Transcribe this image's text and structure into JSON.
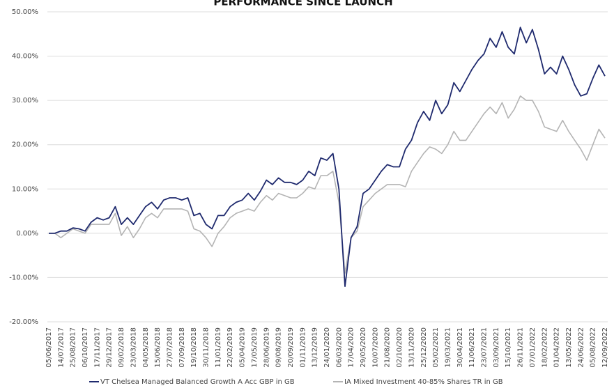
{
  "chart_data": {
    "type": "line",
    "title": "PERFORMANCE SINCE LAUNCH",
    "categories": [
      "05/06/2017",
      null,
      "14/07/2017",
      null,
      "25/08/2017",
      null,
      "06/10/2017",
      null,
      "17/11/2017",
      null,
      "29/12/2017",
      null,
      "09/02/2018",
      null,
      "23/03/2018",
      null,
      "04/05/2018",
      null,
      "15/06/2018",
      null,
      "27/07/2018",
      null,
      "07/09/2018",
      null,
      "19/10/2018",
      null,
      "30/11/2018",
      null,
      "11/01/2019",
      null,
      "22/02/2019",
      null,
      "05/04/2019",
      null,
      "17/05/2019",
      null,
      "28/06/2019",
      null,
      "09/08/2019",
      null,
      "20/09/2019",
      null,
      "01/11/2019",
      null,
      "13/12/2019",
      null,
      "24/01/2020",
      null,
      "06/03/2020",
      null,
      "17/04/2020",
      null,
      "29/05/2020",
      null,
      "10/07/2020",
      null,
      "21/08/2020",
      null,
      "02/10/2020",
      null,
      "13/11/2020",
      null,
      "25/12/2020",
      null,
      "05/02/2021",
      null,
      "19/03/2021",
      null,
      "30/04/2021",
      null,
      "11/06/2021",
      null,
      "23/07/2021",
      null,
      "03/09/2021",
      null,
      "15/10/2021",
      null,
      "26/11/2021",
      null,
      "07/01/2022",
      null,
      "18/02/2022",
      null,
      "01/04/2022",
      null,
      "13/05/2022",
      null,
      "24/06/2022",
      null,
      "05/08/2022",
      null,
      "12/09/2022"
    ],
    "series": [
      {
        "name": "VT Chelsea Managed Balanced Growth A Acc GBP in GB",
        "color": "#1f2a6e",
        "values": [
          0,
          0,
          0.5,
          0.5,
          1.2,
          1,
          0.5,
          2.5,
          3.5,
          3,
          3.5,
          6,
          2,
          3.5,
          2,
          4,
          6,
          7,
          5.5,
          7.5,
          8,
          8,
          7.5,
          8,
          4,
          4.5,
          2,
          1,
          4,
          4,
          6,
          7,
          7.5,
          9,
          7.5,
          9.5,
          12,
          11,
          12.5,
          11.5,
          11.5,
          11,
          12,
          14,
          13,
          17,
          16.5,
          18,
          10,
          -12,
          -1,
          1.5,
          9,
          10,
          12,
          14,
          15.5,
          15,
          15,
          19,
          21,
          25,
          27.5,
          25.5,
          30,
          27,
          29,
          34,
          32,
          34.5,
          37,
          39,
          40.5,
          44,
          42,
          45.5,
          42,
          40.5,
          46.5,
          43,
          46,
          41.5,
          36,
          37.5,
          36,
          40,
          37,
          33.5,
          31,
          31.5,
          35,
          38,
          35.5
        ]
      },
      {
        "name": "IA Mixed Investment 40-85% Shares TR in GB",
        "color": "#b4b4b4",
        "values": [
          0,
          0,
          -1,
          0,
          1,
          0.5,
          0,
          2,
          2,
          2,
          2,
          4.5,
          -0.5,
          1.5,
          -1,
          1,
          3.5,
          4.5,
          3.5,
          5.5,
          5.5,
          5.5,
          5.5,
          5,
          1,
          0.5,
          -1,
          -3,
          0,
          1.5,
          3.5,
          4.5,
          5,
          5.5,
          5,
          7,
          8.5,
          7.5,
          9,
          8.5,
          8,
          8,
          9,
          10.5,
          10,
          13,
          13,
          14,
          7,
          -9,
          -1,
          0.5,
          6,
          7.5,
          9,
          10,
          11,
          11,
          11,
          10.5,
          14,
          16,
          18,
          19.5,
          19,
          18,
          20,
          23,
          21,
          21,
          23,
          25,
          27,
          28.5,
          27,
          29.5,
          26,
          28,
          31,
          30,
          30,
          27.5,
          24,
          23.5,
          23,
          25.5,
          23,
          21,
          19,
          16.5,
          20,
          23.5,
          21.5
        ]
      }
    ],
    "ylim": [
      -20,
      50
    ],
    "yticks": [
      {
        "value": -20,
        "label": "-20.00%"
      },
      {
        "value": -10,
        "label": "-10.00%"
      },
      {
        "value": 0,
        "label": "0.00%"
      },
      {
        "value": 10,
        "label": "10.00%"
      },
      {
        "value": 20,
        "label": "20.00%"
      },
      {
        "value": 30,
        "label": "30.00%"
      },
      {
        "value": 40,
        "label": "40.00%"
      },
      {
        "value": 50,
        "label": "50.00%"
      }
    ],
    "grid": true
  }
}
